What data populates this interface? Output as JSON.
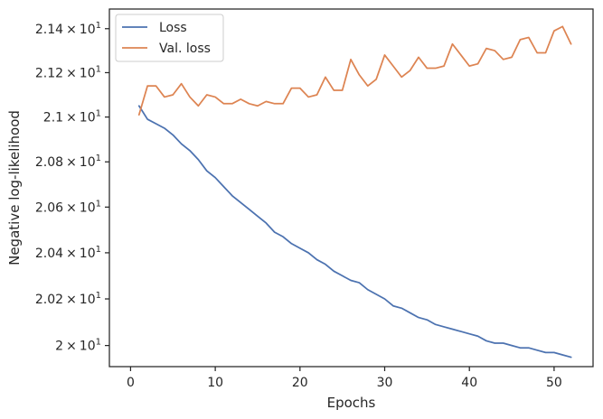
{
  "chart_data": {
    "type": "line",
    "title": "",
    "xlabel": "Epochs",
    "ylabel": "Negative log-likelihood",
    "xlim": [
      -2.5,
      54.6
    ],
    "ylim": [
      19.91,
      21.49
    ],
    "yscale": "log",
    "grid": false,
    "legend_position": "top-left",
    "x_ticks": [
      {
        "value": 0,
        "label": "0"
      },
      {
        "value": 10,
        "label": "10"
      },
      {
        "value": 20,
        "label": "20"
      },
      {
        "value": 30,
        "label": "30"
      },
      {
        "value": 40,
        "label": "40"
      },
      {
        "value": 50,
        "label": "50"
      }
    ],
    "y_ticks": [
      {
        "value": 20.0,
        "base": "2",
        "times": "×",
        "ten": "10",
        "exp": "1"
      },
      {
        "value": 20.2,
        "base": "2.02",
        "times": "×",
        "ten": "10",
        "exp": "1"
      },
      {
        "value": 20.4,
        "base": "2.04",
        "times": "×",
        "ten": "10",
        "exp": "1"
      },
      {
        "value": 20.6,
        "base": "2.06",
        "times": "×",
        "ten": "10",
        "exp": "1"
      },
      {
        "value": 20.8,
        "base": "2.08",
        "times": "×",
        "ten": "10",
        "exp": "1"
      },
      {
        "value": 21.0,
        "base": "2.1",
        "times": "×",
        "ten": "10",
        "exp": "1"
      },
      {
        "value": 21.2,
        "base": "2.12",
        "times": "×",
        "ten": "10",
        "exp": "1"
      },
      {
        "value": 21.4,
        "base": "2.14",
        "times": "×",
        "ten": "10",
        "exp": "1"
      }
    ],
    "x": [
      1,
      2,
      3,
      4,
      5,
      6,
      7,
      8,
      9,
      10,
      11,
      12,
      13,
      14,
      15,
      16,
      17,
      18,
      19,
      20,
      21,
      22,
      23,
      24,
      25,
      26,
      27,
      28,
      29,
      30,
      31,
      32,
      33,
      34,
      35,
      36,
      37,
      38,
      39,
      40,
      41,
      42,
      43,
      44,
      45,
      46,
      47,
      48,
      49,
      50,
      51,
      52
    ],
    "series": [
      {
        "name": "Loss",
        "color": "#4c72b0",
        "values": [
          21.05,
          20.99,
          20.97,
          20.95,
          20.92,
          20.88,
          20.85,
          20.81,
          20.76,
          20.73,
          20.69,
          20.65,
          20.62,
          20.59,
          20.56,
          20.53,
          20.49,
          20.47,
          20.44,
          20.42,
          20.4,
          20.37,
          20.35,
          20.32,
          20.3,
          20.28,
          20.27,
          20.24,
          20.22,
          20.2,
          20.17,
          20.16,
          20.14,
          20.12,
          20.11,
          20.09,
          20.08,
          20.07,
          20.06,
          20.05,
          20.04,
          20.02,
          20.01,
          20.01,
          20.0,
          19.99,
          19.99,
          19.98,
          19.97,
          19.97,
          19.96,
          19.95
        ]
      },
      {
        "name": "Val. loss",
        "color": "#dd8452",
        "values": [
          21.01,
          21.14,
          21.14,
          21.09,
          21.1,
          21.15,
          21.09,
          21.05,
          21.1,
          21.09,
          21.06,
          21.06,
          21.08,
          21.06,
          21.05,
          21.07,
          21.06,
          21.06,
          21.13,
          21.13,
          21.09,
          21.1,
          21.18,
          21.12,
          21.12,
          21.26,
          21.19,
          21.14,
          21.17,
          21.28,
          21.23,
          21.18,
          21.21,
          21.27,
          21.22,
          21.22,
          21.23,
          21.33,
          21.28,
          21.23,
          21.24,
          21.31,
          21.3,
          21.26,
          21.27,
          21.35,
          21.36,
          21.29,
          21.29,
          21.39,
          21.41,
          21.33
        ]
      }
    ]
  }
}
